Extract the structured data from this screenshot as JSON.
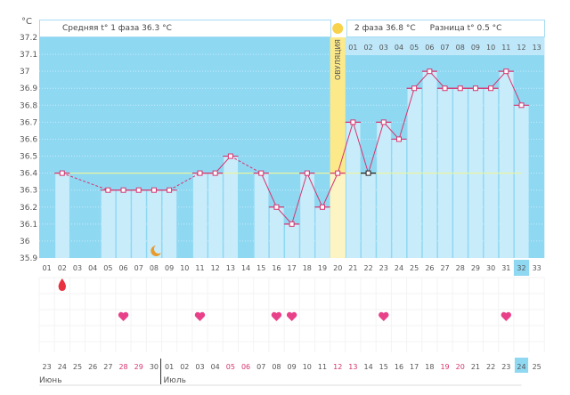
{
  "header": {
    "unit": "°C",
    "phase1": "Средняя t° 1 фаза 36.3 °C",
    "phase2": "2 фаза 36.8 °C",
    "diff": "Разница t° 0.5 °C",
    "ovulation": "ОВУЛЯЦИЯ"
  },
  "colors": {
    "bg": "#8fd8f2",
    "bar": "#c9ecfb",
    "ovulation": "#fbe98a",
    "line": "#d6346e",
    "coverline": "#e8f5a0",
    "highlight": "#8fd8f2",
    "weekend": "#d6346e"
  },
  "chart_data": {
    "type": "line",
    "ylabel": "°C",
    "ylim": [
      35.9,
      37.2
    ],
    "yticks": [
      "37.2",
      "37.1",
      "37",
      "36.9",
      "36.8",
      "36.7",
      "36.6",
      "36.5",
      "36.4",
      "36.3",
      "36.2",
      "36.1",
      "36",
      "35.9"
    ],
    "cycle_days": [
      "01",
      "02",
      "03",
      "04",
      "05",
      "06",
      "07",
      "08",
      "09",
      "10",
      "11",
      "12",
      "13",
      "14",
      "15",
      "16",
      "17",
      "18",
      "19",
      "20",
      "21",
      "22",
      "23",
      "24",
      "25",
      "26",
      "27",
      "28",
      "29",
      "30",
      "31",
      "32",
      "33"
    ],
    "phase2_days": [
      "01",
      "02",
      "03",
      "04",
      "05",
      "06",
      "07",
      "08",
      "09",
      "10",
      "11",
      "12",
      "13"
    ],
    "temperatures": [
      null,
      36.4,
      null,
      null,
      36.3,
      36.3,
      36.3,
      36.3,
      36.3,
      null,
      36.4,
      36.4,
      36.5,
      null,
      36.4,
      36.2,
      36.1,
      36.4,
      36.2,
      36.4,
      36.7,
      36.4,
      36.7,
      36.6,
      36.9,
      37.0,
      36.9,
      36.9,
      36.9,
      36.9,
      37.0,
      36.8,
      null
    ],
    "coverline": 36.4,
    "ovulation_day": 20,
    "current_day": 32,
    "special_marker_day": 22,
    "moon_day": 8,
    "drop_days": [
      2
    ],
    "heart_days": [
      6,
      11,
      16,
      17,
      23,
      31
    ],
    "dates": [
      "23",
      "24",
      "25",
      "26",
      "27",
      "28",
      "29",
      "30",
      "01",
      "02",
      "03",
      "04",
      "05",
      "06",
      "07",
      "08",
      "09",
      "10",
      "11",
      "12",
      "13",
      "14",
      "15",
      "16",
      "17",
      "18",
      "19",
      "20",
      "21",
      "22",
      "23",
      "24",
      "25"
    ],
    "weekend_dates_index": [
      5,
      6,
      12,
      13,
      19,
      20,
      26,
      27
    ],
    "months": [
      {
        "label": "Июнь",
        "start": 0
      },
      {
        "label": "Июль",
        "start": 8
      }
    ]
  }
}
